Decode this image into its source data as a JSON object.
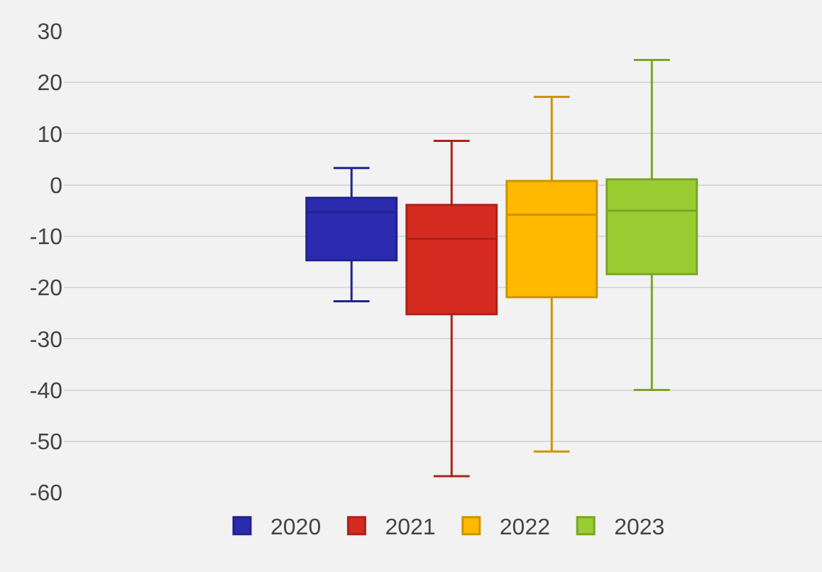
{
  "chart_data": {
    "type": "box",
    "categories": [
      null
    ],
    "ylim": [
      -60,
      30
    ],
    "yticks": [
      -60,
      -50,
      -40,
      -30,
      -20,
      -10,
      0,
      10,
      20,
      30
    ],
    "grid": "y",
    "legend": "bottom",
    "tick_labels": "y",
    "series": [
      {
        "name": "2020",
        "color": "#2b2bb0",
        "boxes": [
          {
            "low": -22.7,
            "q1": -14.7,
            "median": -5.3,
            "q3": -2.5,
            "high": 3.3
          }
        ]
      },
      {
        "name": "2021",
        "color": "#d62b20",
        "boxes": [
          {
            "low": -56.8,
            "q1": -25.2,
            "median": -10.5,
            "q3": -3.9,
            "high": 8.6
          }
        ]
      },
      {
        "name": "2022",
        "color": "#ffb900",
        "boxes": [
          {
            "low": -52,
            "q1": -21.9,
            "median": -5.8,
            "q3": 0.8,
            "high": 17.2
          }
        ]
      },
      {
        "name": "2023",
        "color": "#9acd32",
        "boxes": [
          {
            "low": -40,
            "q1": -17.4,
            "median": -5,
            "q3": 1.1,
            "high": 24.4
          }
        ]
      }
    ]
  }
}
